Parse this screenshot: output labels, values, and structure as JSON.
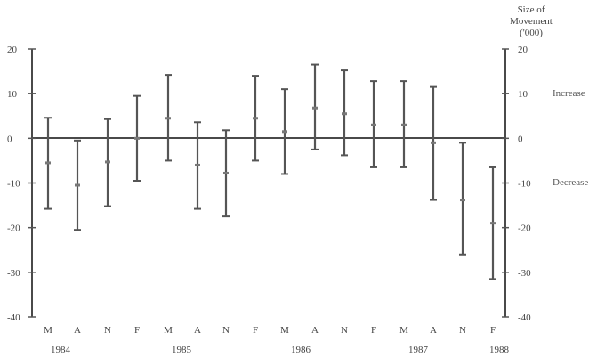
{
  "chart_data": {
    "type": "line",
    "title": "",
    "xlabel": "",
    "ylabel": "",
    "right_axis_label": [
      "Size of",
      "Movement",
      "('000)"
    ],
    "annotations": {
      "increase": "Increase",
      "decrease": "Decrease"
    },
    "ylim": [
      -40,
      20
    ],
    "yticks": [
      "20",
      "10",
      "0",
      "-10",
      "-20",
      "-30",
      "-40"
    ],
    "yticks_right": [
      "20",
      "10",
      "0",
      "-10",
      "-20",
      "-30",
      "-40"
    ],
    "x_categories": [
      "M",
      "A",
      "N",
      "F",
      "M",
      "A",
      "N",
      "F",
      "M",
      "A",
      "N",
      "F",
      "M",
      "A",
      "N",
      "F"
    ],
    "year_labels": [
      "1984",
      "1985",
      "1986",
      "1987",
      "1988"
    ],
    "series": [
      {
        "type": "errorbar",
        "values": [
          {
            "center": -5.5,
            "low": -15.8,
            "high": 4.6
          },
          {
            "center": -10.5,
            "low": -20.5,
            "high": -0.5
          },
          {
            "center": -5.3,
            "low": -15.2,
            "high": 4.3
          },
          {
            "center": 0.0,
            "low": -9.5,
            "high": 9.5
          },
          {
            "center": 4.5,
            "low": -5.0,
            "high": 14.2
          },
          {
            "center": -6.0,
            "low": -15.8,
            "high": 3.6
          },
          {
            "center": -7.8,
            "low": -17.5,
            "high": 1.8
          },
          {
            "center": 4.5,
            "low": -5.0,
            "high": 14.0
          },
          {
            "center": 1.5,
            "low": -8.0,
            "high": 11.0
          },
          {
            "center": 6.8,
            "low": -2.5,
            "high": 16.5
          },
          {
            "center": 5.5,
            "low": -3.8,
            "high": 15.2
          },
          {
            "center": 3.0,
            "low": -6.5,
            "high": 12.8
          },
          {
            "center": 3.0,
            "low": -6.5,
            "high": 12.8
          },
          {
            "center": -1.0,
            "low": -13.8,
            "high": 11.5
          },
          {
            "center": -13.8,
            "low": -26.0,
            "high": -1.0
          },
          {
            "center": -19.0,
            "low": -31.5,
            "high": -6.5
          }
        ]
      }
    ]
  }
}
